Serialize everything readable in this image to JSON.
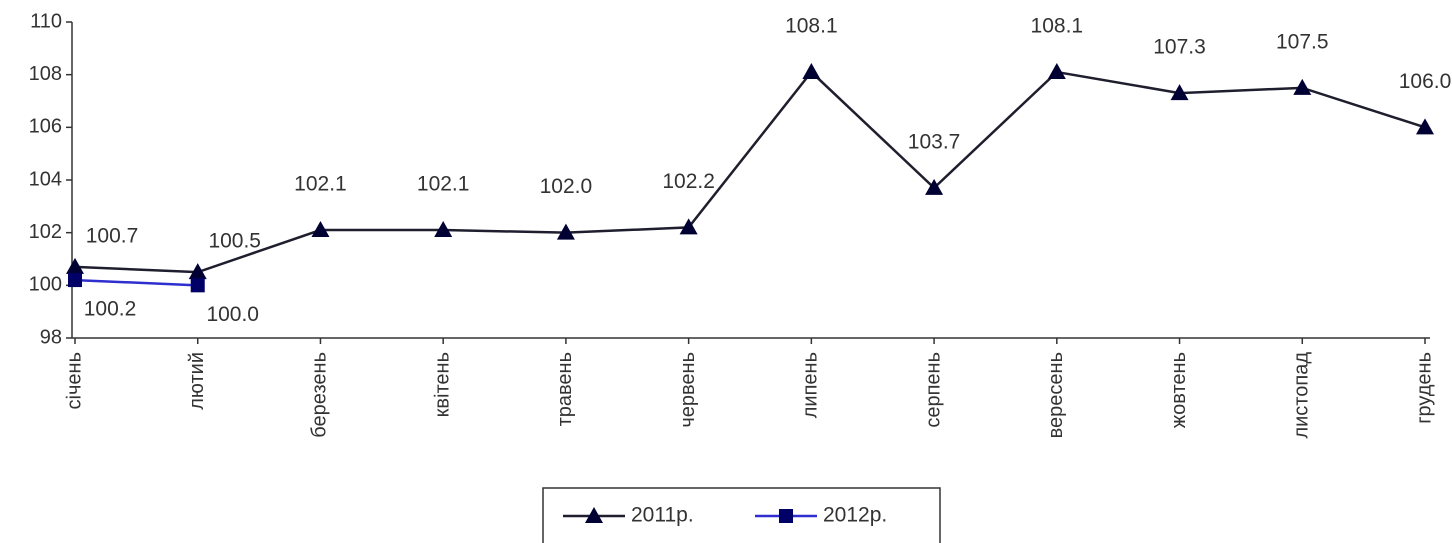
{
  "chart_data": {
    "type": "line",
    "categories": [
      "січень",
      "лютий",
      "березень",
      "квітень",
      "травень",
      "червень",
      "липень",
      "серпень",
      "вересень",
      "жовтень",
      "листопад",
      "грудень"
    ],
    "series": [
      {
        "name": "2011р.",
        "color": "#1e1e2e",
        "marker": "triangle",
        "values": [
          100.7,
          100.5,
          102.1,
          102.1,
          102.0,
          102.2,
          108.1,
          103.7,
          108.1,
          107.3,
          107.5,
          106.0
        ],
        "value_labels": [
          "100.7",
          "100.5",
          "102.1",
          "102.1",
          "102.0",
          "102.2",
          "108.1",
          "103.7",
          "108.1",
          "107.3",
          "107.5",
          "106.0"
        ]
      },
      {
        "name": "2012р.",
        "color": "#2f2fd0",
        "marker": "square",
        "values": [
          100.2,
          100.0,
          null,
          null,
          null,
          null,
          null,
          null,
          null,
          null,
          null,
          null
        ],
        "value_labels": [
          "100.2",
          "100.0",
          null,
          null,
          null,
          null,
          null,
          null,
          null,
          null,
          null,
          null
        ]
      }
    ],
    "ylim": [
      98,
      110
    ],
    "yticks": [
      98,
      100,
      102,
      104,
      106,
      108,
      110
    ],
    "grid": false,
    "legend": "bottom"
  }
}
